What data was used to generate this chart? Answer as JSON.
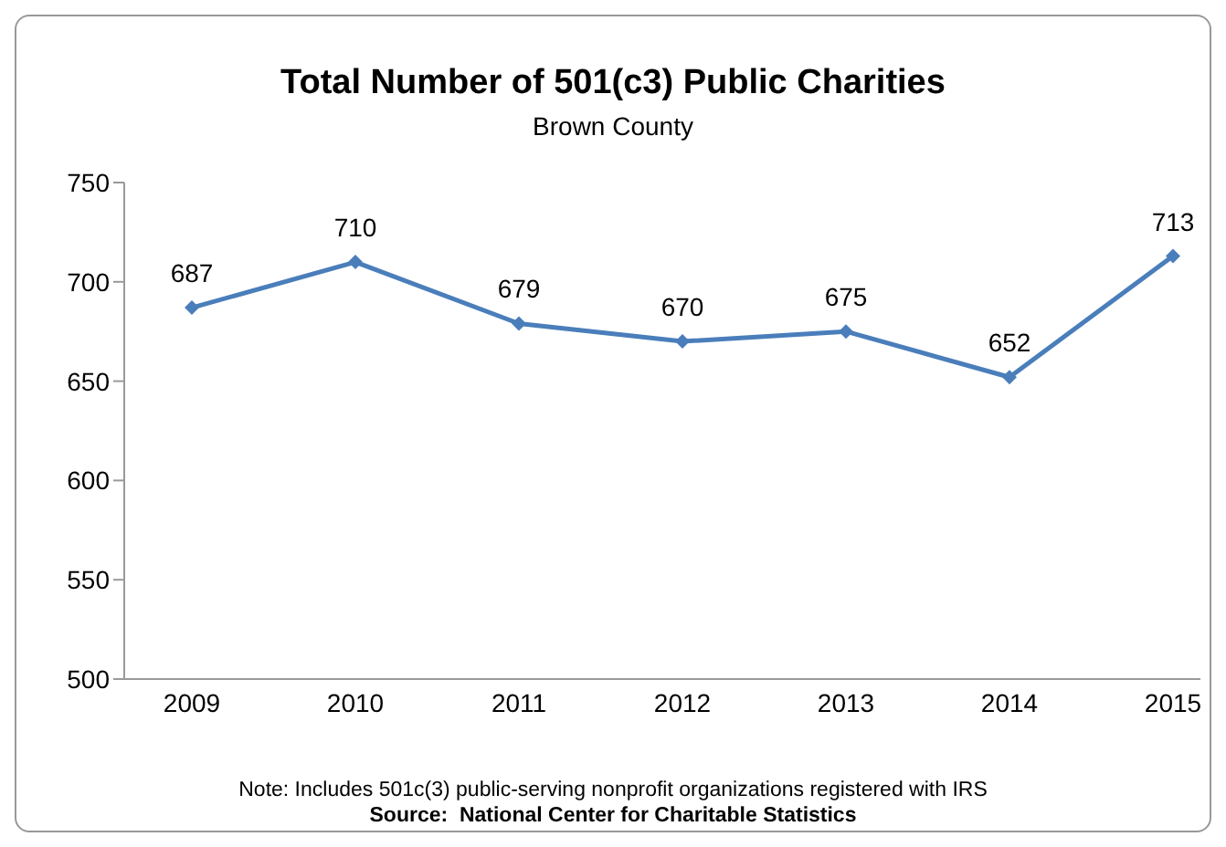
{
  "chart_data": {
    "type": "line",
    "title": "Total Number of 501(c3) Public Charities",
    "subtitle": "Brown County",
    "categories": [
      "2009",
      "2010",
      "2011",
      "2012",
      "2013",
      "2014",
      "2015"
    ],
    "series": [
      {
        "color": "#4a7ebb",
        "values": [
          687,
          710,
          679,
          670,
          675,
          652,
          713
        ]
      }
    ],
    "ylim": [
      500,
      750
    ],
    "yticks": [
      500,
      550,
      600,
      650,
      700,
      750
    ],
    "grid": false,
    "legend": false,
    "marker": "diamond",
    "line_style": "solid",
    "data_labels": true,
    "annotations": [
      "Note: Includes 501c(3) public-serving nonprofit organizations registered with IRS",
      "Source:  National Center for Charitable Statistics"
    ]
  }
}
